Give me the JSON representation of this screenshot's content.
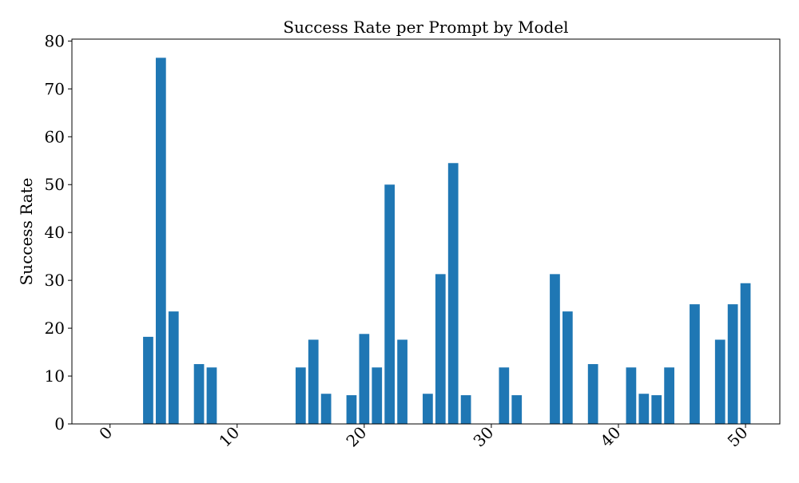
{
  "chart_data": {
    "type": "bar",
    "title": "Success Rate per Prompt by Model",
    "xlabel": "",
    "ylabel": "Success Rate",
    "x": [
      0,
      1,
      2,
      3,
      4,
      5,
      6,
      7,
      8,
      9,
      10,
      11,
      12,
      13,
      14,
      15,
      16,
      17,
      18,
      19,
      20,
      21,
      22,
      23,
      24,
      25,
      26,
      27,
      28,
      29,
      30,
      31,
      32,
      33,
      34,
      35,
      36,
      37,
      38,
      39,
      40,
      41,
      42,
      43,
      44,
      45,
      46,
      47,
      48,
      49,
      50
    ],
    "values": [
      0,
      0,
      0,
      18.2,
      76.5,
      23.5,
      0,
      12.5,
      11.8,
      0,
      0,
      0,
      0,
      0,
      0,
      11.8,
      17.6,
      6.3,
      0,
      6.0,
      18.8,
      11.8,
      50.0,
      17.6,
      0,
      6.3,
      31.3,
      54.5,
      6.0,
      0,
      0,
      11.8,
      6.0,
      0,
      0,
      31.3,
      23.5,
      0,
      12.5,
      0,
      0,
      11.8,
      6.3,
      6.0,
      11.8,
      0,
      25.0,
      0,
      17.6,
      25.0,
      29.4
    ],
    "xlim": [
      -3,
      52.7
    ],
    "ylim": [
      0,
      80.4
    ],
    "xticks": [
      0,
      10,
      20,
      30,
      40,
      50
    ],
    "yticks": [
      0,
      10,
      20,
      30,
      40,
      50,
      60,
      70,
      80
    ],
    "bar_color": "#1f77b4",
    "grid": false,
    "legend": "none"
  }
}
